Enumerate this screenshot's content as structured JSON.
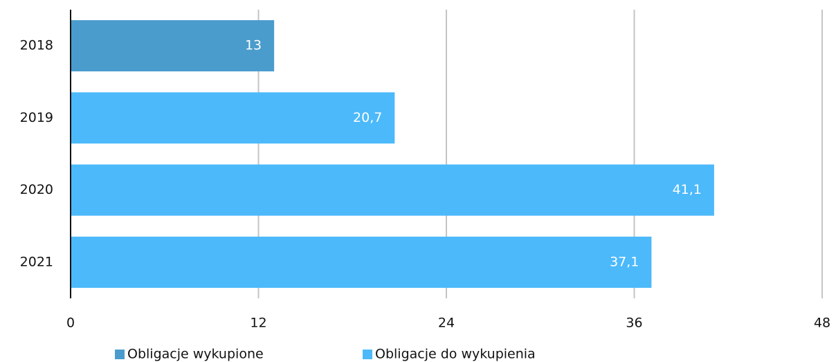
{
  "chart_data": {
    "type": "hbar",
    "categories": [
      "2018",
      "2019",
      "2020",
      "2021"
    ],
    "series": [
      {
        "name": "Obligacje wykupione",
        "color": "#4a9ccd",
        "values": [
          13,
          null,
          null,
          null
        ]
      },
      {
        "name": "Obligacje do wykupienia",
        "color": "#4cb9fb",
        "values": [
          null,
          20.7,
          41.1,
          37.1
        ],
        "value_labels": [
          null,
          "20,7",
          "41,1",
          "37,1"
        ]
      }
    ],
    "xlim": [
      0,
      48
    ],
    "xticks": [
      0,
      12,
      24,
      36,
      48
    ],
    "grid": true,
    "legend": "bottom"
  }
}
